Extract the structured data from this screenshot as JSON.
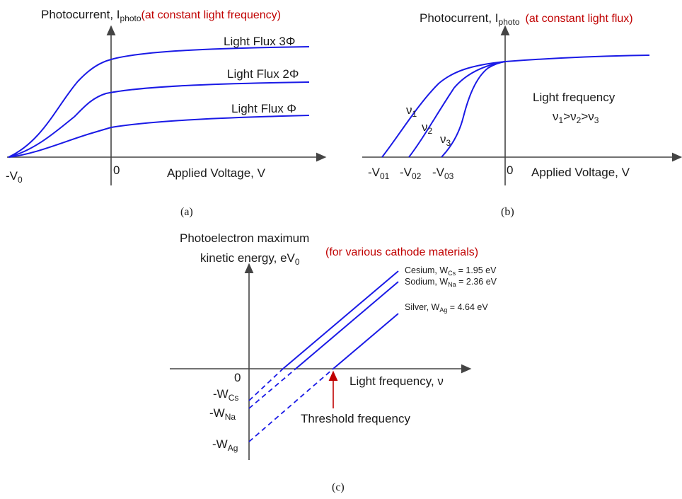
{
  "panel_a": {
    "y_label_main": "Photocurrent, I",
    "y_label_sub": "photo",
    "y_label_note": "(at constant light frequency)",
    "x_label": "Applied Voltage, V",
    "origin": "0",
    "stop_voltage_main": "-V",
    "stop_voltage_sub": "0",
    "curve_labels": [
      "Light Flux 3Φ",
      "Light Flux 2Φ",
      "Light Flux Φ"
    ],
    "caption": "(a)"
  },
  "panel_b": {
    "y_label_main": "Photocurrent, I",
    "y_label_sub": "photo",
    "y_label_note": "(at constant light flux)",
    "x_label": "Applied Voltage, V",
    "origin": "0",
    "stop_voltages": [
      {
        "main": "-V",
        "sub": "01"
      },
      {
        "main": "-V",
        "sub": "02"
      },
      {
        "main": "-V",
        "sub": "03"
      }
    ],
    "curve_labels": [
      {
        "main": "ν",
        "sub": "1"
      },
      {
        "main": "ν",
        "sub": "2"
      },
      {
        "main": "ν",
        "sub": "3"
      }
    ],
    "legend_title": "Light frequency",
    "legend_relation": {
      "v1": "ν",
      "s1": "1",
      "gt1": ">ν",
      "s2": "2",
      "gt2": ">ν",
      "s3": "3"
    },
    "caption": "(b)"
  },
  "panel_c": {
    "y_label_line1": "Photoelectron maximum",
    "y_label_line2_main": "kinetic energy, eV",
    "y_label_line2_sub": "0",
    "y_label_note": "(for various cathode materials)",
    "x_label": "Light frequency, ν",
    "origin": "0",
    "intercepts": [
      {
        "main": "-W",
        "sub": "Cs"
      },
      {
        "main": "-W",
        "sub": "Na"
      },
      {
        "main": "-W",
        "sub": "Ag"
      }
    ],
    "materials": [
      {
        "name": "Cesium, W",
        "sub": "Cs",
        "value": " = 1.95 eV"
      },
      {
        "name": "Sodium, W",
        "sub": "Na",
        "value": " = 2.36 eV"
      },
      {
        "name": "Silver, W",
        "sub": "Ag",
        "value": " = 4.64 eV"
      }
    ],
    "threshold_label": "Threshold frequency",
    "caption": "(c)"
  },
  "colors": {
    "curve": "#1a1ae6",
    "note": "#c00000",
    "axis": "#444444"
  }
}
